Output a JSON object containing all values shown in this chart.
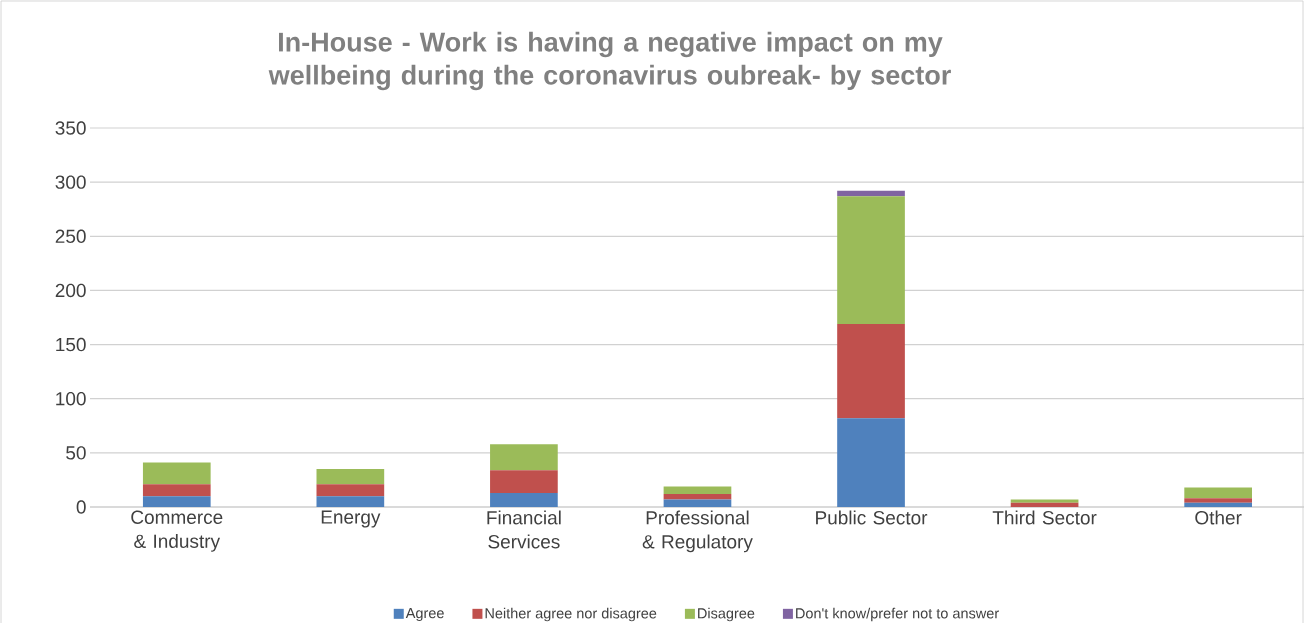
{
  "chart_data": {
    "type": "bar",
    "stacked": true,
    "title": "In-House - Work is having a negative impact on my wellbeing during the coronavirus oubreak- by sector",
    "categories": [
      "Commerce & Industry",
      "Energy",
      "Financial Services",
      "Professional & Regulatory",
      "Public Sector",
      "Third Sector",
      "Other"
    ],
    "series": [
      {
        "name": "Agree",
        "color": "#4f81bd",
        "values": [
          10,
          10,
          13,
          7,
          82,
          0,
          4
        ]
      },
      {
        "name": "Neither agree nor disagree",
        "color": "#c0504d",
        "values": [
          11,
          11,
          21,
          5,
          87,
          4,
          4
        ]
      },
      {
        "name": "Disagree",
        "color": "#9bbb59",
        "values": [
          20,
          14,
          24,
          7,
          118,
          3,
          10
        ]
      },
      {
        "name": "Don't know/prefer not to answer",
        "color": "#8064a2",
        "values": [
          0,
          0,
          0,
          0,
          5,
          0,
          0
        ]
      }
    ],
    "ylim": [
      0,
      350
    ],
    "yticks": [
      0,
      50,
      100,
      150,
      200,
      250,
      300,
      350
    ],
    "grid": "y",
    "legend": "bottom"
  }
}
